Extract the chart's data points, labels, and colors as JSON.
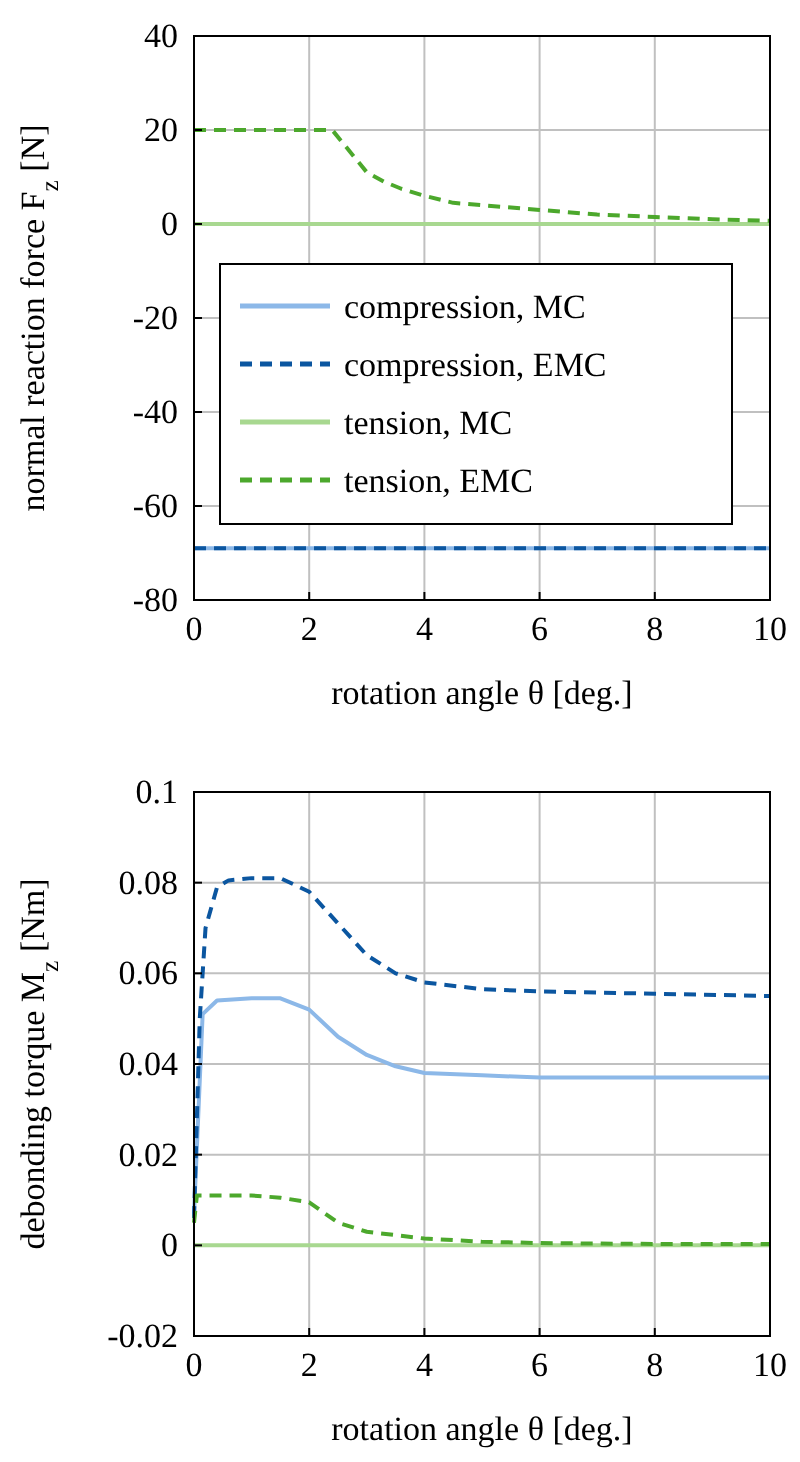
{
  "chart_data": [
    {
      "type": "line",
      "xlabel": "rotation angle θ [deg.]",
      "ylabel": "normal reaction force F$_{z}$ [N]",
      "xlim": [
        0,
        10
      ],
      "xticks": [
        0,
        2,
        4,
        6,
        8,
        10
      ],
      "ylim": [
        -80,
        40
      ],
      "yticks": [
        -80,
        -60,
        -40,
        -20,
        0,
        20,
        40
      ],
      "grid": true,
      "legend": "center",
      "x": [
        0,
        1,
        2,
        2.4,
        2.6,
        2.8,
        3,
        3.3,
        3.6,
        4,
        4.5,
        5,
        6,
        7,
        8,
        9,
        10
      ],
      "series": [
        {
          "name": "compression, MC",
          "color": "#8cb8e8",
          "line_style": "solid",
          "values": [
            -69,
            -69,
            -69,
            -69,
            -69,
            -69,
            -69,
            -69,
            -69,
            -69,
            -69,
            -69,
            -69,
            -69,
            -69,
            -69,
            -69
          ]
        },
        {
          "name": "compression, EMC",
          "color": "#0b56a0",
          "line_style": "dashed",
          "values": [
            -69,
            -69,
            -69,
            -69,
            -69,
            -69,
            -69,
            -69,
            -69,
            -69,
            -69,
            -69,
            -69,
            -69,
            -69,
            -69,
            -69
          ]
        },
        {
          "name": "tension, MC",
          "color": "#a8d890",
          "line_style": "solid",
          "values": [
            0,
            0,
            0,
            0,
            0,
            0,
            0,
            0,
            0,
            0,
            0,
            0,
            0,
            0,
            0,
            0,
            0
          ]
        },
        {
          "name": "tension, EMC",
          "color": "#4ca82c",
          "line_style": "dashed",
          "values": [
            20,
            20,
            20,
            20,
            17,
            14,
            11,
            9,
            7.5,
            6,
            4.5,
            4,
            3,
            2,
            1.5,
            1,
            0.7
          ]
        }
      ]
    },
    {
      "type": "line",
      "xlabel": "rotation angle θ [deg.]",
      "ylabel": "debonding torque M$_{z}$ [Nm]",
      "xlim": [
        0,
        10
      ],
      "xticks": [
        0,
        2,
        4,
        6,
        8,
        10
      ],
      "ylim": [
        -0.02,
        0.1
      ],
      "yticks": [
        -0.02,
        0,
        0.02,
        0.04,
        0.06,
        0.08,
        0.1
      ],
      "grid": true,
      "legend": false,
      "series": [
        {
          "color": "#8cb8e8",
          "line_style": "solid",
          "x": [
            0,
            0.15,
            0.4,
            1,
            1.5,
            2,
            2.5,
            3,
            3.5,
            4,
            5,
            6,
            8,
            10
          ],
          "values": [
            0.007,
            0.051,
            0.054,
            0.0545,
            0.0545,
            0.052,
            0.046,
            0.042,
            0.0395,
            0.038,
            0.0375,
            0.037,
            0.037,
            0.037
          ]
        },
        {
          "color": "#0b56a0",
          "line_style": "dashed",
          "x": [
            0,
            0.1,
            0.2,
            0.4,
            0.6,
            1,
            1.5,
            2,
            2.5,
            3,
            3.5,
            4,
            5,
            6,
            8,
            10
          ],
          "values": [
            0.006,
            0.05,
            0.07,
            0.079,
            0.0805,
            0.081,
            0.081,
            0.078,
            0.071,
            0.064,
            0.06,
            0.058,
            0.0565,
            0.056,
            0.0555,
            0.055
          ]
        },
        {
          "color": "#a8d890",
          "line_style": "solid",
          "x": [
            0,
            2,
            4,
            6,
            8,
            10
          ],
          "values": [
            0,
            0,
            0,
            0,
            0,
            0
          ]
        },
        {
          "color": "#4ca82c",
          "line_style": "dashed",
          "x": [
            0,
            0.05,
            1,
            1.5,
            2,
            2.5,
            3,
            4,
            5,
            6,
            8,
            10
          ],
          "values": [
            0.005,
            0.011,
            0.011,
            0.0105,
            0.0095,
            0.005,
            0.003,
            0.0015,
            0.0008,
            0.0005,
            0.0003,
            0.0003
          ]
        }
      ]
    }
  ]
}
